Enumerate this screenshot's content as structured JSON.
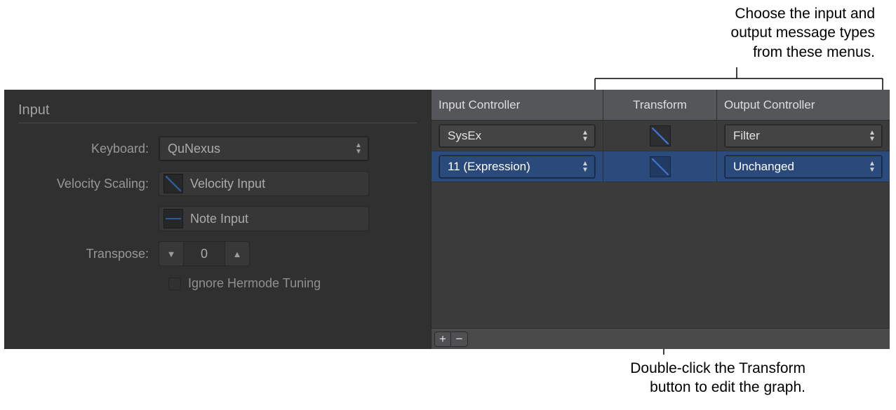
{
  "callouts": {
    "top": "Choose the input and\noutput message types\nfrom these menus.",
    "bottom": "Double-click the Transform\nbutton to edit the graph."
  },
  "input_section": {
    "title": "Input",
    "keyboard_label": "Keyboard:",
    "keyboard_value": "QuNexus",
    "velocity_label": "Velocity Scaling:",
    "velocity_value": "Velocity Input",
    "note_value": "Note Input",
    "transpose_label": "Transpose:",
    "transpose_value": "0",
    "ignore_hermode": "Ignore Hermode Tuning"
  },
  "controller_table": {
    "headers": {
      "input": "Input Controller",
      "transform": "Transform",
      "output": "Output Controller"
    },
    "rows": [
      {
        "input": "SysEx",
        "output": "Filter",
        "selected": false
      },
      {
        "input": "11 (Expression)",
        "output": "Unchanged",
        "selected": true
      }
    ],
    "footer": {
      "add": "+",
      "remove": "−"
    }
  },
  "colors": {
    "panel_bg": "#3a3a3a",
    "accent_curve": "#3d71c8",
    "selection_row": "#2c4b7d"
  }
}
